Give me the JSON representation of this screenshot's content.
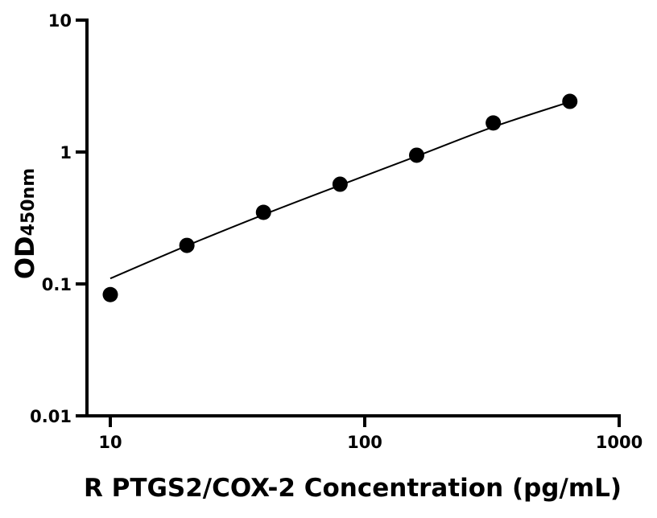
{
  "chart_data": {
    "type": "scatter",
    "title": "",
    "xlabel": "R PTGS2/COX-2 Concentration (pg/mL)",
    "ylabel_main": "OD",
    "ylabel_sub": "450nm",
    "x_scale": "log",
    "y_scale": "log",
    "xlim": [
      8,
      1000
    ],
    "ylim": [
      0.01,
      10
    ],
    "x_ticks": [
      10,
      100,
      1000
    ],
    "x_tick_labels": [
      "10",
      "100",
      "1000"
    ],
    "y_ticks": [
      0.01,
      0.1,
      1,
      10
    ],
    "y_tick_labels": [
      "0.01",
      "0.1",
      "1",
      "10"
    ],
    "grid": false,
    "legend": "none",
    "series": [
      {
        "x": [
          10,
          20,
          40,
          80,
          160,
          320,
          640
        ],
        "y": [
          0.083,
          0.196,
          0.349,
          0.57,
          0.946,
          1.66,
          2.42
        ],
        "marker": "filled-circle",
        "color": "#000000"
      }
    ],
    "fit_curve": {
      "x": [
        10,
        20,
        40,
        80,
        160,
        320,
        640
      ],
      "y": [
        0.11,
        0.195,
        0.335,
        0.56,
        0.93,
        1.55,
        2.4
      ],
      "color": "#000000"
    }
  }
}
